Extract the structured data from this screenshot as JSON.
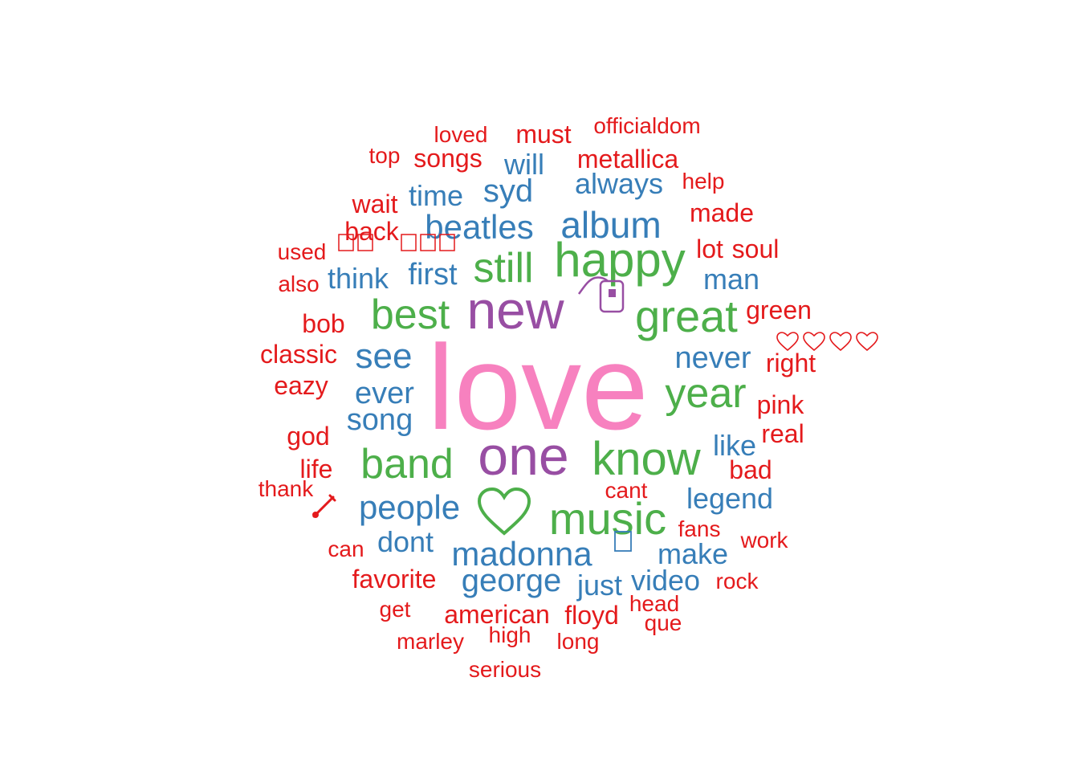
{
  "colors": {
    "tier1": "#f781bf",
    "tier2": "#984ea3",
    "tier3": "#4daf4a",
    "tier4": "#377eb8",
    "tier5": "#e41a1c"
  },
  "words": {
    "love": "love",
    "new": "new",
    "one": "one",
    "happy": "happy",
    "great": "great",
    "know": "know",
    "music": "music",
    "still": "still",
    "best": "best",
    "year": "year",
    "band": "band",
    "album": "album",
    "beatles": "beatles",
    "see": "see",
    "people": "people",
    "madonna": "madonna",
    "george": "george",
    "syd": "syd",
    "never": "never",
    "ever": "ever",
    "song": "song",
    "first": "first",
    "think": "think",
    "time": "time",
    "will": "will",
    "always": "always",
    "man": "man",
    "like": "like",
    "legend": "legend",
    "dont": "dont",
    "make": "make",
    "just": "just",
    "video": "video",
    "loved": "loved",
    "must": "must",
    "officialdom": "officialdom",
    "top": "top",
    "songs": "songs",
    "metallica": "metallica",
    "help": "help",
    "wait": "wait",
    "made": "made",
    "back": "back",
    "used": "used",
    "lot": "lot",
    "soul": "soul",
    "also": "also",
    "green": "green",
    "bob": "bob",
    "classic": "classic",
    "right": "right",
    "eazy": "eazy",
    "pink": "pink",
    "real": "real",
    "god": "god",
    "life": "life",
    "bad": "bad",
    "thank": "thank",
    "cant": "cant",
    "fans": "fans",
    "can": "can",
    "work": "work",
    "favorite": "favorite",
    "rock": "rock",
    "head": "head",
    "get": "get",
    "american": "american",
    "floyd": "floyd",
    "que": "que",
    "marley": "marley",
    "high": "high",
    "long": "long",
    "serious": "serious"
  },
  "icons": {
    "green_heart": "heart-icon",
    "hearts_row": "four-hearts-icon",
    "purple_glyph": "mouse-icon",
    "guitar": "guitar-icon",
    "unknown_glyphs": "missing-glyph-icon"
  }
}
